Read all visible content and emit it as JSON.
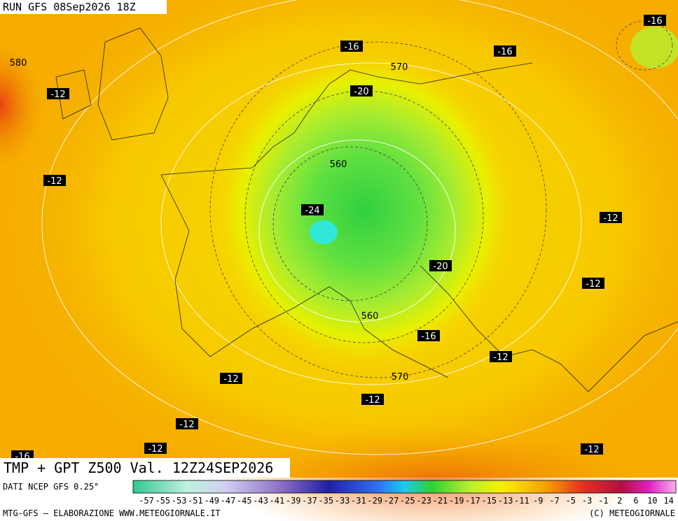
{
  "header": {
    "run": "RUN GFS 08Sep2026 18Z"
  },
  "map": {
    "contour_labels": [
      "-16",
      "580",
      "-12",
      "-16",
      "-16",
      "570",
      "-20",
      "560",
      "-12",
      "-24",
      "-12",
      "-20",
      "-12",
      "560",
      "-16",
      "-12",
      "570",
      "-12",
      "-12",
      "-12",
      "-12",
      "-16",
      "-12"
    ]
  },
  "footer": {
    "title": "TMP + GPT Z500 Val. 12Z24SEP2026",
    "source": "DATI NCEP GFS 0.25°",
    "credit": "MTG-GFS — ELABORAZIONE WWW.METEOGIORNALE.IT",
    "copyright": "(C) METEOGIORNALE",
    "scale": [
      "-57",
      "-55",
      "-53",
      "-51",
      "-49",
      "-47",
      "-45",
      "-43",
      "-41",
      "-39",
      "-37",
      "-35",
      "-33",
      "-31",
      "-29",
      "-27",
      "-25",
      "-23",
      "-21",
      "-19",
      "-17",
      "-15",
      "-13",
      "-11",
      "-9",
      "-7",
      "-5",
      "-3",
      "-1",
      "2",
      "6",
      "10",
      "14"
    ]
  }
}
